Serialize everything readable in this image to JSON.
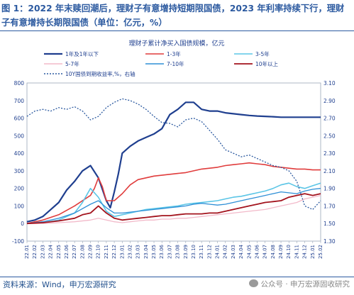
{
  "figure": {
    "title": "图 1：2022 年末赎回潮后，理财子有意增持短期限国债，2023 年利率持续下行，理财子有意增持长期限国债（单位：亿元，%）",
    "source": "资料来源：Wind，申万宏源研究",
    "watermark": "公众号 · 申万宏源固收研究"
  },
  "chart_data": {
    "type": "line",
    "title": "理财子累计净买入国债规模，亿元",
    "x_labels": [
      "22.01",
      "22.02",
      "22.03",
      "22.04",
      "22.05",
      "22.06",
      "22.07",
      "22.08",
      "22.09",
      "22.10",
      "22.11",
      "22.12",
      "23.01",
      "23.02",
      "23.03",
      "23.04",
      "23.05",
      "23.06",
      "23.07",
      "23.08",
      "23.09",
      "23.10",
      "23.11",
      "23.12",
      "24.01",
      "24.02",
      "24.03",
      "24.04",
      "24.05",
      "24.06",
      "24.07",
      "24.08",
      "24.09",
      "24.10",
      "24.11",
      "24.12",
      "25.01",
      "25.02"
    ],
    "y_left": {
      "min": -100,
      "max": 800,
      "ticks": [
        -100,
        0,
        100,
        200,
        300,
        400,
        500,
        600,
        700,
        800
      ]
    },
    "y_right": {
      "min": 1.3,
      "max": 3.1,
      "ticks": [
        "1.30",
        "1.50",
        "1.70",
        "1.90",
        "2.10",
        "2.30",
        "2.50",
        "2.70",
        "2.90",
        "3.10"
      ]
    },
    "legend": [
      "1年及1年以下",
      "1-3年",
      "3-5年",
      "5-7年",
      "7-10年",
      "10年以上",
      "10Y国债到期收益率,%，右轴"
    ],
    "series": [
      {
        "name": "1年及1年以下",
        "color": "#1f3f8f",
        "width": 2.2,
        "axis": "left",
        "x": [
          0,
          1,
          2,
          3,
          4,
          5,
          6,
          7,
          8,
          9,
          10,
          10.5,
          11,
          11.5,
          12,
          13,
          14,
          15,
          16,
          17,
          18,
          19,
          20,
          21,
          22,
          23,
          24,
          25,
          26,
          27,
          28,
          29,
          30,
          31,
          32,
          33,
          34,
          35,
          36,
          37
        ],
        "y": [
          10,
          20,
          40,
          80,
          120,
          190,
          240,
          300,
          330,
          260,
          130,
          90,
          180,
          280,
          400,
          440,
          470,
          490,
          510,
          540,
          620,
          650,
          690,
          690,
          650,
          640,
          640,
          630,
          625,
          620,
          615,
          612,
          610,
          608,
          605,
          605,
          605,
          605,
          605,
          605
        ]
      },
      {
        "name": "1-3年",
        "color": "#e03c3c",
        "width": 1.6,
        "axis": "left",
        "x": [
          0,
          2,
          4,
          6,
          8,
          8.5,
          9,
          9.5,
          10,
          11,
          12,
          13,
          14,
          15,
          16,
          17,
          18,
          19,
          20,
          21,
          22,
          23,
          24,
          25,
          26,
          27,
          28,
          29,
          30,
          31,
          32,
          33,
          34,
          35,
          36,
          37
        ],
        "y": [
          0,
          20,
          50,
          100,
          160,
          200,
          260,
          210,
          130,
          130,
          170,
          220,
          250,
          260,
          270,
          275,
          280,
          285,
          290,
          300,
          310,
          315,
          320,
          330,
          335,
          340,
          345,
          340,
          335,
          325,
          320,
          315,
          310,
          310,
          305,
          305
        ]
      },
      {
        "name": "3-5年",
        "color": "#5bc5e6",
        "width": 1.6,
        "axis": "left",
        "x": [
          0,
          2,
          4,
          6,
          7,
          8,
          9,
          10,
          11,
          12,
          13,
          14,
          15,
          16,
          17,
          18,
          19,
          20,
          21,
          22,
          23,
          24,
          25,
          26,
          27,
          28,
          29,
          30,
          31,
          32,
          33,
          34,
          35,
          36,
          37
        ],
        "y": [
          0,
          5,
          20,
          60,
          120,
          200,
          150,
          70,
          40,
          50,
          60,
          70,
          80,
          85,
          90,
          95,
          100,
          110,
          115,
          120,
          125,
          130,
          140,
          150,
          155,
          165,
          175,
          185,
          200,
          220,
          230,
          210,
          200,
          215,
          230
        ]
      },
      {
        "name": "5-7年",
        "color": "#f2b9c9",
        "width": 1.3,
        "axis": "left",
        "x": [
          0,
          2,
          4,
          6,
          8,
          9,
          10,
          11,
          12,
          13,
          14,
          15,
          16,
          17,
          18,
          19,
          20,
          21,
          22,
          23,
          24,
          25,
          26,
          27,
          28,
          29,
          30,
          31,
          32,
          33,
          34,
          35,
          36,
          37
        ],
        "y": [
          0,
          0,
          5,
          10,
          20,
          30,
          20,
          10,
          5,
          10,
          15,
          20,
          20,
          25,
          25,
          30,
          30,
          35,
          40,
          45,
          50,
          55,
          60,
          65,
          70,
          75,
          80,
          90,
          100,
          110,
          120,
          140,
          150,
          160
        ]
      },
      {
        "name": "7-10年",
        "color": "#2e8fd6",
        "width": 1.3,
        "axis": "left",
        "x": [
          0,
          2,
          4,
          6,
          8,
          9,
          10,
          11,
          12,
          13,
          14,
          15,
          16,
          17,
          18,
          19,
          20,
          21,
          22,
          23,
          24,
          25,
          26,
          27,
          28,
          29,
          30,
          31,
          32,
          33,
          34,
          35,
          36,
          37
        ],
        "y": [
          0,
          10,
          30,
          60,
          110,
          130,
          90,
          60,
          60,
          65,
          70,
          75,
          80,
          85,
          90,
          95,
          100,
          110,
          115,
          110,
          105,
          110,
          120,
          130,
          140,
          150,
          160,
          170,
          180,
          175,
          170,
          185,
          195,
          200
        ]
      },
      {
        "name": "10年以上",
        "color": "#a3131d",
        "width": 1.8,
        "axis": "left",
        "x": [
          0,
          2,
          4,
          6,
          7,
          8,
          9,
          10,
          11,
          12,
          13,
          14,
          15,
          16,
          17,
          18,
          19,
          20,
          21,
          22,
          23,
          24,
          25,
          26,
          27,
          28,
          29,
          30,
          31,
          32,
          33,
          34,
          35,
          36,
          37
        ],
        "y": [
          0,
          5,
          15,
          30,
          50,
          60,
          100,
          60,
          30,
          20,
          25,
          30,
          35,
          40,
          45,
          45,
          50,
          55,
          55,
          55,
          60,
          60,
          70,
          80,
          90,
          100,
          110,
          120,
          125,
          130,
          150,
          160,
          170,
          160,
          170
        ]
      },
      {
        "name": "10Y国债到期收益率,%，右轴",
        "color": "#2c5aa0",
        "width": 1.3,
        "axis": "right",
        "dash": "2,2",
        "x": [
          0,
          1,
          2,
          3,
          4,
          5,
          6,
          7,
          8,
          9,
          10,
          11,
          12,
          13,
          14,
          15,
          16,
          17,
          18,
          19,
          20,
          21,
          22,
          23,
          24,
          25,
          26,
          27,
          28,
          29,
          30,
          31,
          32,
          33,
          34,
          35,
          36,
          37
        ],
        "y": [
          2.72,
          2.78,
          2.8,
          2.78,
          2.82,
          2.8,
          2.83,
          2.78,
          2.68,
          2.72,
          2.82,
          2.88,
          2.92,
          2.9,
          2.86,
          2.8,
          2.72,
          2.65,
          2.64,
          2.6,
          2.68,
          2.7,
          2.66,
          2.56,
          2.46,
          2.34,
          2.3,
          2.26,
          2.28,
          2.24,
          2.2,
          2.16,
          2.14,
          2.1,
          1.98,
          1.7,
          1.66,
          1.76
        ]
      }
    ]
  }
}
